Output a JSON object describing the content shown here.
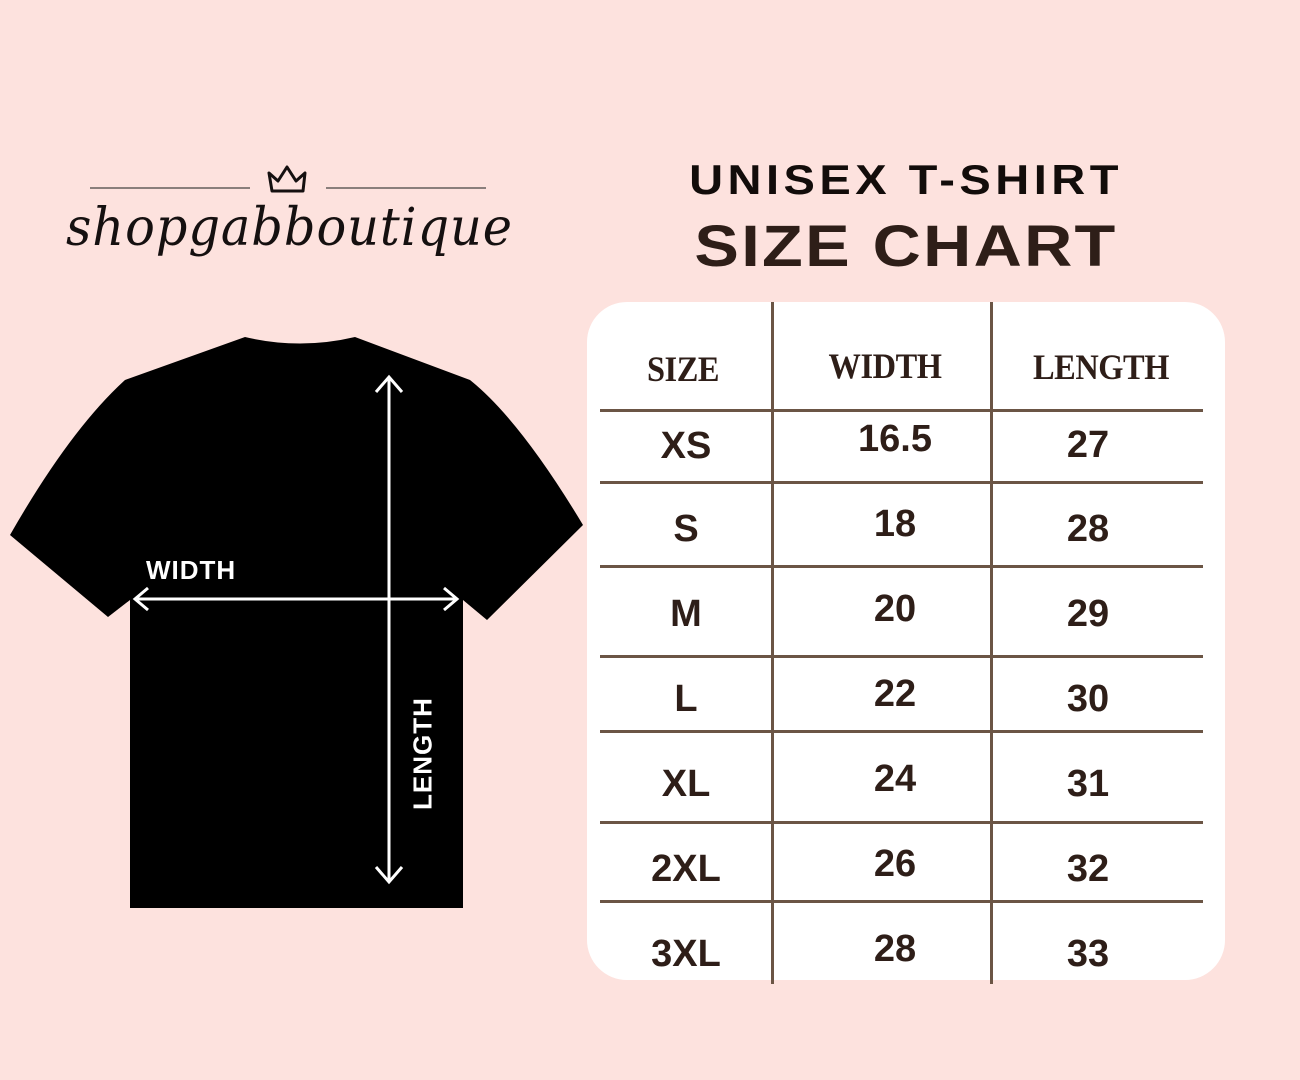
{
  "brand": {
    "name": "shopgabboutique",
    "icon": "crown-icon"
  },
  "heading": {
    "line1": "UNISEX T-SHIRT",
    "line2": "SIZE CHART"
  },
  "diagram": {
    "width_label": "WIDTH",
    "length_label": "LENGTH"
  },
  "table": {
    "headers": [
      "SIZE",
      "WIDTH",
      "LENGTH"
    ],
    "rows": [
      [
        "XS",
        "16.5",
        "27"
      ],
      [
        "S",
        "18",
        "28"
      ],
      [
        "M",
        "20",
        "29"
      ],
      [
        "L",
        "22",
        "30"
      ],
      [
        "XL",
        "24",
        "31"
      ],
      [
        "2XL",
        "26",
        "32"
      ],
      [
        "3XL",
        "28",
        "33"
      ]
    ]
  },
  "colors": {
    "background": "#fde2de",
    "text": "#2e1e18",
    "grid": "#6b5545",
    "shirt": "#000000"
  }
}
